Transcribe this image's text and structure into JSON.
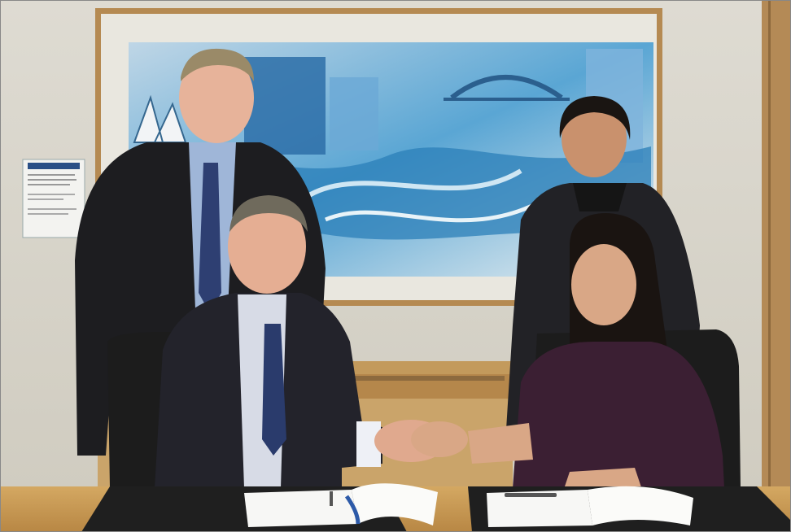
{
  "image": {
    "kind": "photograph",
    "subject": "agreement-signing-handshake"
  },
  "colors": {
    "wall": "#d9d6cd",
    "frame": "#b58a52",
    "painting_blue": "#3f8fc2",
    "table": "#c79a55",
    "chair": "#1c1c1c",
    "suit": "#1e1e22",
    "dress": "#3b1f33"
  }
}
